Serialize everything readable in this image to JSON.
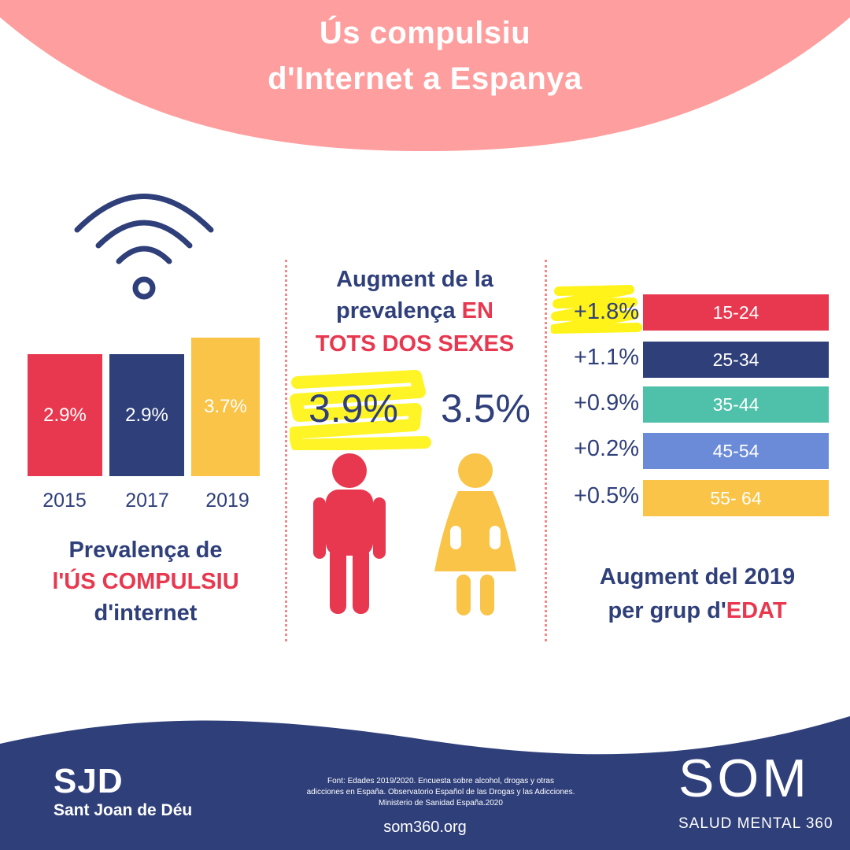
{
  "title": {
    "line1": "Ús compulsiu",
    "line2": "d'Internet a Espanya"
  },
  "colors": {
    "pink": "#ff9e9e",
    "red": "#e8384f",
    "navy": "#2f3f7a",
    "yellow": "#f9c447",
    "teal": "#4fc1aa",
    "blue": "#6b8bd9",
    "highlight": "#fff200"
  },
  "icons": {
    "wifi": "wifi-icon",
    "male": "male-figure-icon",
    "female": "female-figure-icon",
    "som_logo": "som-logo"
  },
  "chart_data": [
    {
      "type": "bar",
      "title": "Prevalença de l'ÚS COMPULSIU d'internet",
      "categories": [
        "2015",
        "2017",
        "2019"
      ],
      "values": [
        2.9,
        2.9,
        3.7
      ],
      "value_labels": [
        "2.9%",
        "2.9%",
        "3.7%"
      ],
      "unit": "%",
      "colors": [
        "#e8384f",
        "#2f3f7a",
        "#f9c447"
      ]
    },
    {
      "type": "table",
      "title": "Augment de la prevalença EN TOTS DOS SEXES",
      "categories": [
        "Homes",
        "Dones"
      ],
      "values": [
        3.9,
        3.5
      ],
      "value_labels": [
        "3.9%",
        "3.5%"
      ]
    },
    {
      "type": "table",
      "title": "Augment del 2019 per grup d'EDAT",
      "categories": [
        "15-24",
        "25-34",
        "35-44",
        "45-54",
        "55- 64"
      ],
      "values": [
        1.8,
        1.1,
        0.9,
        0.2,
        0.5
      ],
      "value_labels": [
        "+1.8%",
        "+1.1%",
        "+0.9%",
        "+0.2%",
        "+0.5%"
      ],
      "colors": [
        "#e8384f",
        "#2f3f7a",
        "#4fc1aa",
        "#6b8bd9",
        "#f9c447"
      ]
    }
  ],
  "left_caption": {
    "line1": "Prevalença de",
    "line2": "l'ÚS COMPULSIU",
    "line3": "d'internet"
  },
  "middle_header": {
    "part1": "Augment de la",
    "part2": "prevalença ",
    "part2_red": "EN",
    "part3_red": "TOTS DOS SEXES"
  },
  "right_caption": {
    "line1": "Augment del 2019",
    "line2": "per grup d'",
    "line2_red": "EDAT"
  },
  "footer": {
    "sjd_logo": "SJD",
    "sjd_name": "Sant Joan de Déu",
    "source": [
      "Font: Edades 2019/2020. Encuesta sobre alcohol, drogas y otras",
      "adicciones en España. Observatorio Español de las Drogas y las Adicciones.",
      "Ministerio de Sanidad España.2020"
    ],
    "website": "som360.org",
    "som_logo": "SOM",
    "som_sub": "SALUD MENTAL 360"
  }
}
